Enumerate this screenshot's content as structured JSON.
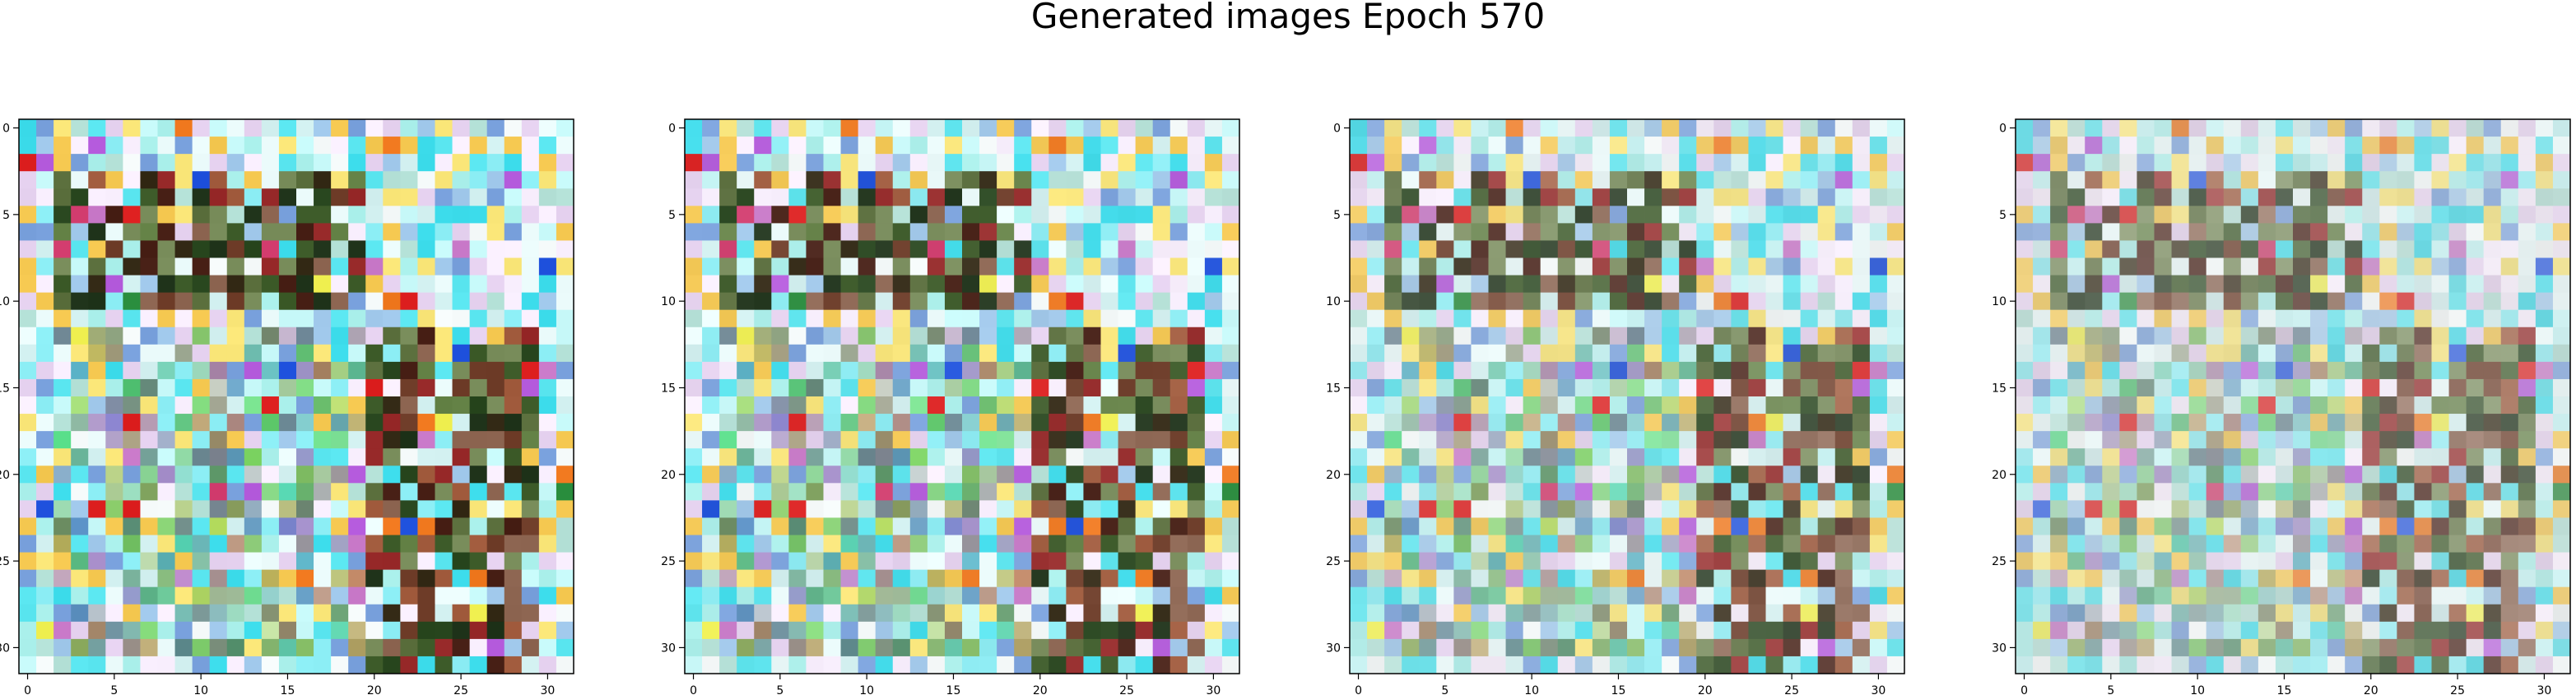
{
  "figure": {
    "title": "Generated images Epoch 570"
  },
  "chart_data": [
    {
      "type": "heatmap",
      "panel": 1,
      "grid": false,
      "xlim": [
        -0.5,
        31.5
      ],
      "ylim": [
        31.5,
        -0.5
      ],
      "xticks": [
        0,
        5,
        10,
        15,
        20,
        25,
        30
      ],
      "yticks": [
        0,
        5,
        10,
        15,
        20,
        25,
        30
      ],
      "fade": 0.0
    },
    {
      "type": "heatmap",
      "panel": 2,
      "grid": false,
      "xlim": [
        -0.5,
        31.5
      ],
      "ylim": [
        31.5,
        -0.5
      ],
      "xticks": [
        0,
        5,
        10,
        15,
        20,
        25,
        30
      ],
      "yticks": [
        0,
        5,
        10,
        15,
        20,
        25,
        30
      ],
      "fade": 0.05
    },
    {
      "type": "heatmap",
      "panel": 3,
      "grid": false,
      "xlim": [
        -0.5,
        31.5
      ],
      "ylim": [
        31.5,
        -0.5
      ],
      "xticks": [
        0,
        5,
        10,
        15,
        20,
        25,
        30
      ],
      "yticks": [
        0,
        5,
        10,
        15,
        20,
        25,
        30
      ],
      "fade": 0.18
    },
    {
      "type": "heatmap",
      "panel": 4,
      "grid": false,
      "xlim": [
        -0.5,
        31.5
      ],
      "ylim": [
        31.5,
        -0.5
      ],
      "xticks": [
        0,
        5,
        10,
        15,
        20,
        25,
        30
      ],
      "yticks": [
        0,
        5,
        10,
        15,
        20,
        25,
        30
      ],
      "fade": 0.32
    }
  ],
  "colors": {
    "axis": "#000000",
    "background": "#ffffff"
  }
}
